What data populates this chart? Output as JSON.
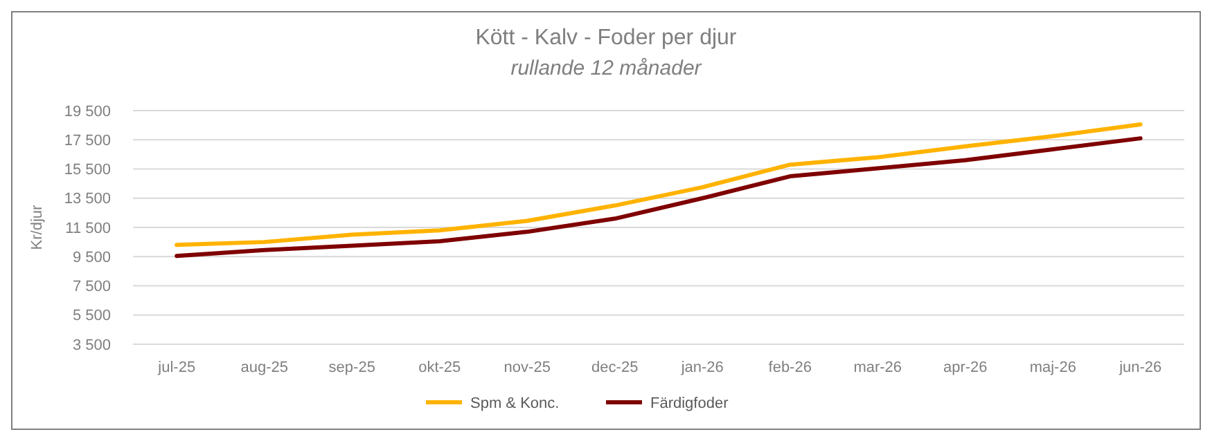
{
  "chart_data": {
    "type": "line",
    "title": "Kött - Kalv - Foder per djur",
    "subtitle": "rullande 12 månader",
    "ylabel": "Kr/djur",
    "categories": [
      "jul-25",
      "aug-25",
      "sep-25",
      "okt-25",
      "nov-25",
      "dec-25",
      "jan-26",
      "feb-26",
      "mar-26",
      "apr-26",
      "maj-26",
      "jun-26"
    ],
    "series": [
      {
        "name": "Spm & Konc.",
        "color": "#ffb300",
        "values": [
          10300,
          10500,
          11000,
          11300,
          11950,
          13000,
          14250,
          15800,
          16300,
          17050,
          17750,
          18550
        ]
      },
      {
        "name": "Färdigfoder",
        "color": "#7f0000",
        "values": [
          9550,
          9950,
          10250,
          10550,
          11200,
          12100,
          13500,
          15000,
          15550,
          16100,
          16850,
          17600
        ]
      }
    ],
    "ylim": [
      3500,
      19500
    ],
    "yticks": [
      {
        "value": 3500,
        "label": "3 500"
      },
      {
        "value": 5500,
        "label": "5 500"
      },
      {
        "value": 7500,
        "label": "7 500"
      },
      {
        "value": 9500,
        "label": "9 500"
      },
      {
        "value": 11500,
        "label": "11 500"
      },
      {
        "value": 13500,
        "label": "13 500"
      },
      {
        "value": 15500,
        "label": "15 500"
      },
      {
        "value": 17500,
        "label": "17 500"
      },
      {
        "value": 19500,
        "label": "19 500"
      }
    ],
    "grid": "y",
    "legend": "bottom",
    "marker": "none",
    "line_style": "solid"
  }
}
